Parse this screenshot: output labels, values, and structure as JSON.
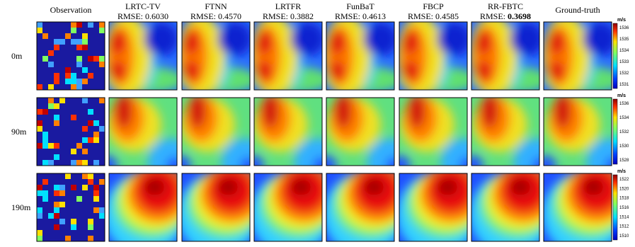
{
  "header": {
    "observation": "Observation",
    "columns": [
      {
        "name": "LRTC-TV",
        "rmse_label": "RMSE:",
        "rmse_value": "0.6030",
        "bold": false
      },
      {
        "name": "FTNN",
        "rmse_label": "RMSE:",
        "rmse_value": "0.4570",
        "bold": false
      },
      {
        "name": "LRTFR",
        "rmse_label": "RMSE:",
        "rmse_value": "0.3882",
        "bold": false
      },
      {
        "name": "FunBaT",
        "rmse_label": "RMSE:",
        "rmse_value": "0.4613",
        "bold": false
      },
      {
        "name": "FBCP",
        "rmse_label": "RMSE:",
        "rmse_value": "0.4585",
        "bold": false
      },
      {
        "name": "RR-FBTC",
        "rmse_label": "RMSE:",
        "rmse_value": "0.3698",
        "bold": true
      }
    ],
    "ground_truth": "Ground-truth"
  },
  "rows": [
    {
      "label": "0m",
      "colorbar": {
        "unit": "m/s",
        "ticks": [
          1536,
          1535,
          1534,
          1533,
          1532,
          1531
        ]
      }
    },
    {
      "label": "90m",
      "colorbar": {
        "unit": "m/s",
        "ticks": [
          1536,
          1534,
          1532,
          1530,
          1528
        ]
      }
    },
    {
      "label": "190m",
      "colorbar": {
        "unit": "m/s",
        "ticks": [
          1522,
          1520,
          1518,
          1516,
          1514,
          1512,
          1510
        ]
      }
    }
  ]
}
